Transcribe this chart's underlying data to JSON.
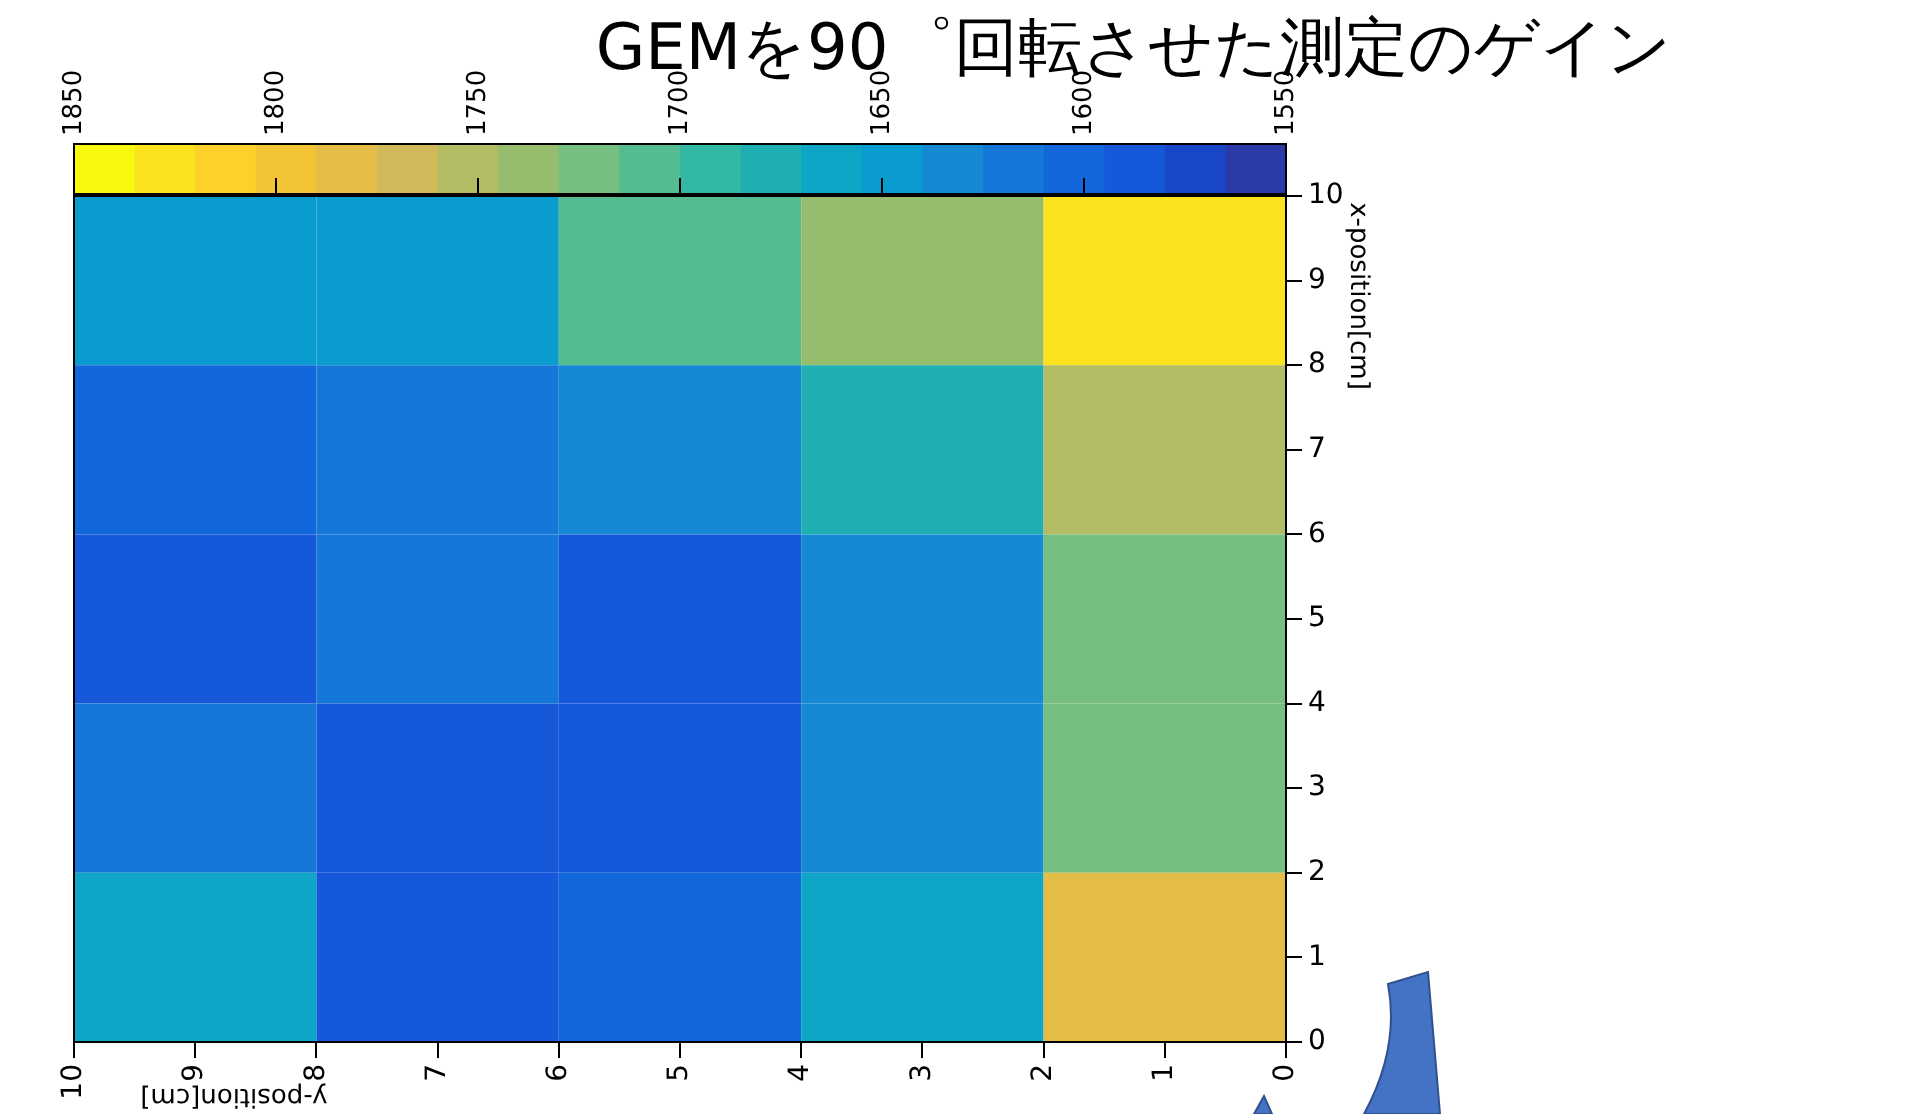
{
  "chart_data": {
    "type": "heatmap",
    "title": "GEMを90゜回転させた測定のゲイン",
    "xlabel": "y-position[cm]",
    "ylabel": "x-position[cm]",
    "xlim": [
      10,
      0
    ],
    "xticks": [
      10,
      9,
      8,
      7,
      6,
      5,
      4,
      3,
      2,
      1,
      0
    ],
    "ylim": [
      0,
      10
    ],
    "yticks": [
      0,
      1,
      2,
      3,
      4,
      5,
      6,
      7,
      8,
      9,
      10
    ],
    "cells": [
      [
        1648,
        1648,
        1708,
        1738,
        1828
      ],
      [
        1603,
        1618,
        1640,
        1678,
        1753
      ],
      [
        1588,
        1618,
        1588,
        1633,
        1723
      ],
      [
        1618,
        1588,
        1588,
        1640,
        1723
      ],
      [
        1663,
        1588,
        1603,
        1663,
        1783
      ]
    ],
    "clim": [
      1850,
      1550
    ],
    "cticks": [
      1850,
      1800,
      1750,
      1700,
      1650,
      1600,
      1550
    ]
  }
}
